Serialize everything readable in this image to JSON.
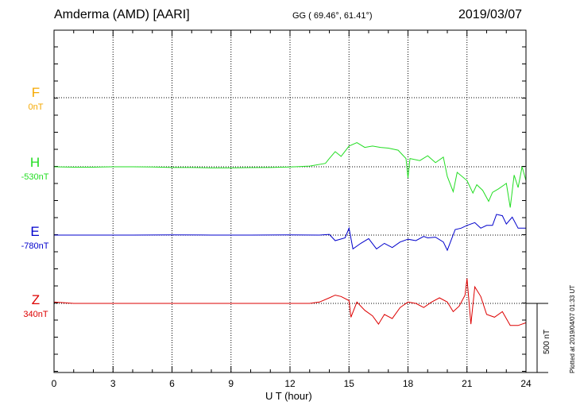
{
  "header": {
    "station": "Amderma (AMD)  [AARI]",
    "coords": "GG ( 69.46°,  61.41°)",
    "date": "2019/03/07"
  },
  "footer": {
    "plotted": "Plotted at 2019/04/07 01:33 UT",
    "scale_label": "500 nT"
  },
  "components": [
    {
      "name": "F",
      "baseline": "0nT",
      "color": "#f5a800"
    },
    {
      "name": "H",
      "baseline": "-530nT",
      "color": "#22dd22"
    },
    {
      "name": "E",
      "baseline": "-780nT",
      "color": "#0000cc"
    },
    {
      "name": "Z",
      "baseline": "340nT",
      "color": "#dd0000"
    }
  ],
  "chart_data": {
    "type": "line",
    "xlabel": "U T (hour)",
    "xlim": [
      0,
      24
    ],
    "x_ticks": [
      0,
      3,
      6,
      9,
      12,
      15,
      18,
      21,
      24
    ],
    "y_unit": "nT",
    "scale_bar_nT": 500,
    "series": [
      {
        "name": "F",
        "color": "#f5a800",
        "baseline_nT": 0,
        "points": []
      },
      {
        "name": "H",
        "color": "#22dd22",
        "baseline_nT": -530,
        "points": [
          [
            0,
            0
          ],
          [
            1,
            -3
          ],
          [
            2,
            -3
          ],
          [
            3,
            0
          ],
          [
            4,
            0
          ],
          [
            5,
            -2
          ],
          [
            6,
            -5
          ],
          [
            7,
            -5
          ],
          [
            8,
            -8
          ],
          [
            9,
            -8
          ],
          [
            10,
            -6
          ],
          [
            11,
            -5
          ],
          [
            12,
            -2
          ],
          [
            13,
            5
          ],
          [
            13.8,
            25
          ],
          [
            14,
            60
          ],
          [
            14.3,
            110
          ],
          [
            14.6,
            75
          ],
          [
            15,
            150
          ],
          [
            15.4,
            175
          ],
          [
            15.8,
            140
          ],
          [
            16.2,
            150
          ],
          [
            16.6,
            140
          ],
          [
            17,
            135
          ],
          [
            17.5,
            120
          ],
          [
            17.9,
            60
          ],
          [
            18,
            -80
          ],
          [
            18.1,
            60
          ],
          [
            18.6,
            45
          ],
          [
            19,
            80
          ],
          [
            19.4,
            30
          ],
          [
            19.8,
            70
          ],
          [
            20,
            -70
          ],
          [
            20.3,
            -180
          ],
          [
            20.5,
            -40
          ],
          [
            21,
            -100
          ],
          [
            21.3,
            -190
          ],
          [
            21.5,
            -130
          ],
          [
            21.8,
            -170
          ],
          [
            22.1,
            -250
          ],
          [
            22.3,
            -185
          ],
          [
            22.6,
            -160
          ],
          [
            23,
            -120
          ],
          [
            23.2,
            -295
          ],
          [
            23.4,
            -60
          ],
          [
            23.6,
            -150
          ],
          [
            23.8,
            0
          ],
          [
            24,
            -100
          ]
        ]
      },
      {
        "name": "E",
        "color": "#0000cc",
        "baseline_nT": -780,
        "points": [
          [
            0,
            0
          ],
          [
            2,
            0
          ],
          [
            4,
            0
          ],
          [
            6,
            2
          ],
          [
            8,
            0
          ],
          [
            10,
            0
          ],
          [
            12,
            2
          ],
          [
            13.5,
            0
          ],
          [
            14,
            5
          ],
          [
            14.3,
            -40
          ],
          [
            14.8,
            -20
          ],
          [
            15,
            50
          ],
          [
            15.2,
            -100
          ],
          [
            15.6,
            -60
          ],
          [
            16,
            -25
          ],
          [
            16.4,
            -100
          ],
          [
            16.8,
            -60
          ],
          [
            17.2,
            -90
          ],
          [
            17.6,
            -50
          ],
          [
            18,
            -30
          ],
          [
            18.4,
            -40
          ],
          [
            18.8,
            -10
          ],
          [
            19,
            -20
          ],
          [
            19.4,
            -15
          ],
          [
            19.8,
            -50
          ],
          [
            20,
            -110
          ],
          [
            20.4,
            40
          ],
          [
            20.7,
            50
          ],
          [
            21,
            70
          ],
          [
            21.4,
            90
          ],
          [
            21.7,
            50
          ],
          [
            22,
            70
          ],
          [
            22.3,
            70
          ],
          [
            22.5,
            150
          ],
          [
            22.8,
            140
          ],
          [
            23,
            80
          ],
          [
            23.3,
            130
          ],
          [
            23.6,
            50
          ],
          [
            24,
            50
          ]
        ]
      },
      {
        "name": "Z",
        "color": "#dd0000",
        "baseline_nT": 340,
        "points": [
          [
            0,
            10
          ],
          [
            1,
            0
          ],
          [
            2,
            0
          ],
          [
            4,
            0
          ],
          [
            6,
            0
          ],
          [
            8,
            0
          ],
          [
            10,
            0
          ],
          [
            12,
            0
          ],
          [
            13,
            0
          ],
          [
            13.5,
            10
          ],
          [
            14,
            40
          ],
          [
            14.3,
            60
          ],
          [
            14.6,
            50
          ],
          [
            15,
            20
          ],
          [
            15.1,
            -100
          ],
          [
            15.4,
            10
          ],
          [
            15.8,
            -50
          ],
          [
            16.2,
            -90
          ],
          [
            16.5,
            -150
          ],
          [
            16.8,
            -80
          ],
          [
            17.2,
            -110
          ],
          [
            17.6,
            -30
          ],
          [
            18,
            10
          ],
          [
            18.4,
            0
          ],
          [
            18.8,
            -30
          ],
          [
            19.2,
            10
          ],
          [
            19.6,
            40
          ],
          [
            20,
            10
          ],
          [
            20.3,
            -60
          ],
          [
            20.6,
            -20
          ],
          [
            20.9,
            60
          ],
          [
            21,
            180
          ],
          [
            21.2,
            -150
          ],
          [
            21.4,
            120
          ],
          [
            21.7,
            50
          ],
          [
            22,
            -80
          ],
          [
            22.4,
            -100
          ],
          [
            22.8,
            -60
          ],
          [
            23.2,
            -160
          ],
          [
            23.6,
            -160
          ],
          [
            24,
            -140
          ]
        ]
      }
    ]
  }
}
